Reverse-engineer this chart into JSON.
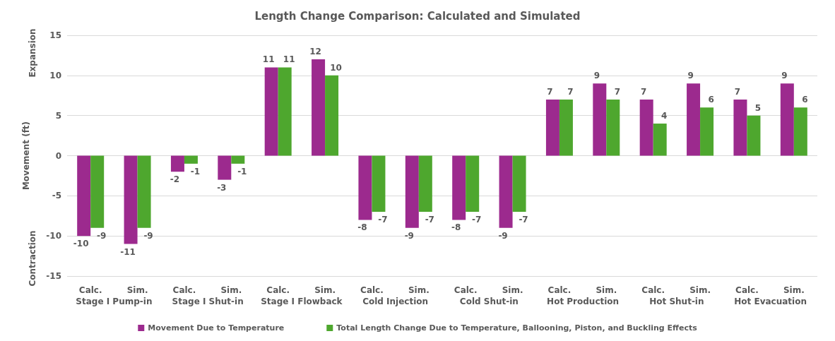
{
  "chart_data": {
    "type": "bar",
    "title": "Length Change Comparison: Calculated and Simulated",
    "ylabel": "Movement (ft)",
    "categories": [
      "Calc.",
      "Sim.",
      "Calc.",
      "Sim.",
      "Calc.",
      "Sim.",
      "Calc.",
      "Sim.",
      "Calc.",
      "Sim.",
      "Calc.",
      "Sim.",
      "Calc.",
      "Sim.",
      "Calc.",
      "Sim."
    ],
    "series": [
      {
        "name": "Movement Due to Temperature",
        "color": "#9c2a8e",
        "values": [
          -10,
          -11,
          -2,
          -3,
          11,
          12,
          -8,
          -9,
          -8,
          -9,
          7,
          9,
          7,
          9,
          7,
          9
        ]
      },
      {
        "name": "Total Length Change Due to Temperature, Ballooning, Piston, and Buckling Effects",
        "color": "#4ea72e",
        "values": [
          -9,
          -9,
          -1,
          -1,
          11,
          10,
          -7,
          -7,
          -7,
          -7,
          7,
          7,
          4,
          6,
          5,
          6
        ]
      }
    ],
    "annotations": [
      "Stage I Pump-in",
      "Stage I Shut-in",
      "Stage I Flowback",
      "Cold Injection",
      "Cold Shut-in",
      "Hot Production",
      "Hot Shut-in",
      "Hot Evacuation",
      "Expansion",
      "Contraction"
    ],
    "ylim": [
      -15,
      15
    ],
    "yticks": [
      -15,
      -10,
      -5,
      0,
      5,
      10,
      15
    ],
    "grid": "y",
    "legend": "bottom",
    "data_labels": true
  }
}
